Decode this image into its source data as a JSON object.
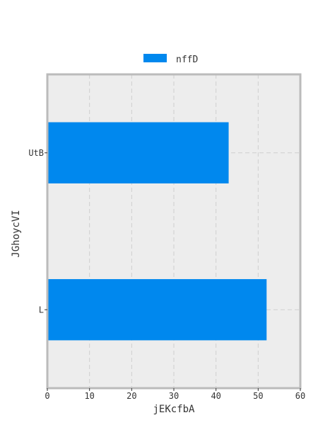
{
  "chart_data": {
    "type": "bar",
    "orientation": "horizontal",
    "categories": [
      "UtB",
      "L"
    ],
    "series": [
      {
        "name": "nffD",
        "values": [
          43,
          52
        ]
      }
    ],
    "xlabel": "jEKcfbA",
    "ylabel": "JGhoycVI",
    "xlim": [
      0,
      60
    ],
    "xticks": [
      0,
      10,
      20,
      30,
      40,
      50,
      60
    ],
    "grid": true,
    "legend_position": "top",
    "colors": {
      "bar": "#0088ee",
      "plot_background": "#ededed",
      "frame": "#bbbbbb"
    }
  }
}
